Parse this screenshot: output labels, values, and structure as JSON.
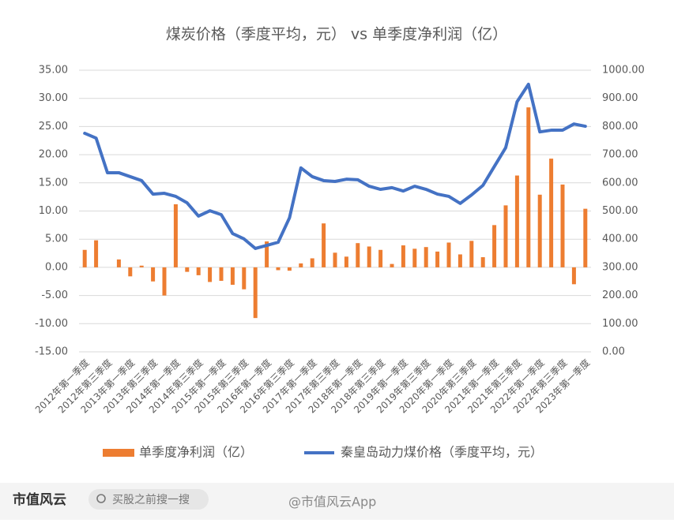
{
  "chart_data": {
    "type": "bar_line",
    "title": "煤炭价格（季度平均，元） vs 单季度净利润（亿）",
    "categories": [
      "2012年第一季度",
      null,
      "2012年第三季度",
      null,
      "2013年第一季度",
      null,
      "2013年第三季度",
      null,
      "2014年第一季度",
      null,
      "2014年第三季度",
      null,
      "2015年第一季度",
      null,
      "2015年第三季度",
      null,
      "2016年第一季度",
      null,
      "2016年第三季度",
      null,
      "2017年第一季度",
      null,
      "2017年第三季度",
      null,
      "2018年第一季度",
      null,
      "2018年第三季度",
      null,
      "2019年第一季度",
      null,
      "2019年第三季度",
      null,
      "2020年第一季度",
      null,
      "2020年第三季度",
      null,
      "2021年第一季度",
      null,
      "2021年第三季度",
      null,
      "2022年第一季度",
      null,
      "2022年第三季度",
      null,
      "2023年第一季度"
    ],
    "series": [
      {
        "name": "单季度净利润（亿）",
        "type": "bar",
        "color": "#ED7D31",
        "axis": "y",
        "values": [
          3.1,
          4.8,
          0,
          1.4,
          -1.6,
          0.3,
          -2.5,
          -5.0,
          11.2,
          -0.8,
          -1.4,
          -2.6,
          -2.4,
          -3.1,
          -3.9,
          -9.0,
          4.6,
          -0.5,
          -0.6,
          0.7,
          1.6,
          7.8,
          2.6,
          1.9,
          4.3,
          3.7,
          3.1,
          0.6,
          3.9,
          3.3,
          3.6,
          2.8,
          4.4,
          2.3,
          4.7,
          1.8,
          7.5,
          11.0,
          16.3,
          28.4,
          12.9,
          19.3,
          14.7,
          -3.0,
          10.4
        ]
      },
      {
        "name": "秦皇岛动力煤价格（季度平均，元）",
        "type": "line",
        "color": "#4472C4",
        "axis": "y2",
        "values": [
          776,
          759,
          636,
          636,
          622,
          608,
          560,
          563,
          552,
          529,
          482,
          501,
          487,
          420,
          401,
          367,
          378,
          389,
          476,
          653,
          622,
          608,
          605,
          613,
          611,
          588,
          577,
          583,
          571,
          588,
          577,
          560,
          552,
          527,
          557,
          591,
          658,
          725,
          888,
          950,
          781,
          787,
          787,
          809,
          801
        ]
      }
    ],
    "ylim": [
      -15,
      35
    ],
    "yticks": [
      {
        "value": -15,
        "label": "-15.00"
      },
      {
        "value": -10,
        "label": "-10.00"
      },
      {
        "value": -5,
        "label": "-5.00"
      },
      {
        "value": 0,
        "label": "0.00"
      },
      {
        "value": 5,
        "label": "5.00"
      },
      {
        "value": 10,
        "label": "10.00"
      },
      {
        "value": 15,
        "label": "15.00"
      },
      {
        "value": 20,
        "label": "20.00"
      },
      {
        "value": 25,
        "label": "25.00"
      },
      {
        "value": 30,
        "label": "30.00"
      },
      {
        "value": 35,
        "label": "35.00"
      }
    ],
    "y2lim": [
      0,
      1000
    ],
    "y2ticks": [
      {
        "value": 0,
        "label": "0.00"
      },
      {
        "value": 100,
        "label": "100.00"
      },
      {
        "value": 200,
        "label": "200.00"
      },
      {
        "value": 300,
        "label": "300.00"
      },
      {
        "value": 400,
        "label": "400.00"
      },
      {
        "value": 500,
        "label": "500.00"
      },
      {
        "value": 600,
        "label": "600.00"
      },
      {
        "value": 700,
        "label": "700.00"
      },
      {
        "value": 800,
        "label": "800.00"
      },
      {
        "value": 900,
        "label": "900.00"
      },
      {
        "value": 1000,
        "label": "1000.00"
      }
    ],
    "legend": "bottom"
  },
  "footer": {
    "brand": "市值风云",
    "search": "买股之前搜一搜",
    "account": "@市值风云App"
  }
}
